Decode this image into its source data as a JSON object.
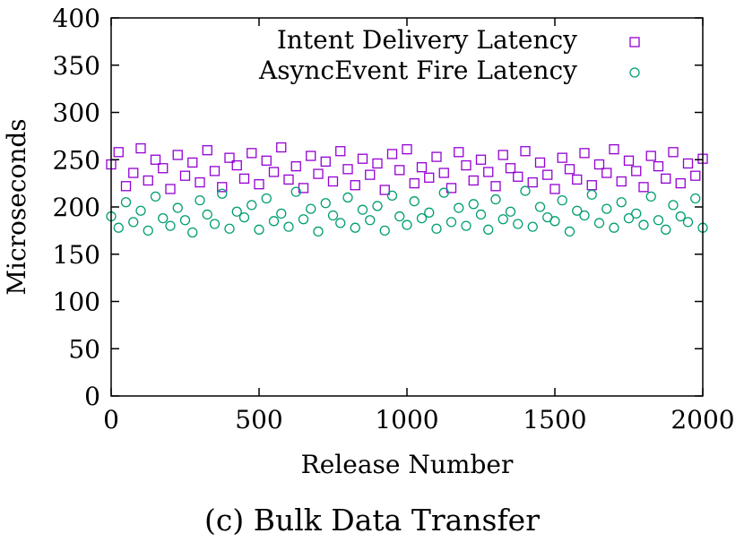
{
  "caption": "(c) Bulk Data Transfer",
  "chart_data": {
    "type": "scatter",
    "xlabel": "Release Number",
    "ylabel": "Microseconds",
    "xlim": [
      0,
      2000
    ],
    "ylim": [
      0,
      400
    ],
    "xticks": [
      0,
      500,
      1000,
      1500,
      2000
    ],
    "xtick_labels": [
      "0",
      "500",
      "1000",
      "1500",
      "2000"
    ],
    "yticks": [
      0,
      50,
      100,
      150,
      200,
      250,
      300,
      350,
      400
    ],
    "ytick_labels": [
      "0",
      "50",
      "100",
      "150",
      "200",
      "250",
      "300",
      "350",
      "400"
    ],
    "grid": false,
    "legend_position": "top-right",
    "series": [
      {
        "name": "Intent Delivery Latency",
        "marker": "square",
        "color": "#9400d3",
        "x": [
          0,
          25,
          50,
          75,
          100,
          125,
          150,
          175,
          200,
          225,
          250,
          275,
          300,
          325,
          350,
          375,
          400,
          425,
          450,
          475,
          500,
          525,
          550,
          575,
          600,
          625,
          650,
          675,
          700,
          725,
          750,
          775,
          800,
          825,
          850,
          875,
          900,
          925,
          950,
          975,
          1000,
          1025,
          1050,
          1075,
          1100,
          1125,
          1150,
          1175,
          1200,
          1225,
          1250,
          1275,
          1300,
          1325,
          1350,
          1375,
          1400,
          1425,
          1450,
          1475,
          1500,
          1525,
          1550,
          1575,
          1600,
          1625,
          1650,
          1675,
          1700,
          1725,
          1750,
          1775,
          1800,
          1825,
          1850,
          1875,
          1900,
          1925,
          1950,
          1975,
          2000
        ],
        "y": [
          245,
          258,
          222,
          236,
          262,
          228,
          250,
          241,
          219,
          255,
          233,
          247,
          226,
          260,
          238,
          221,
          252,
          244,
          230,
          257,
          224,
          249,
          237,
          263,
          229,
          243,
          220,
          254,
          235,
          248,
          227,
          259,
          240,
          223,
          251,
          234,
          246,
          218,
          256,
          239,
          261,
          225,
          242,
          231,
          253,
          236,
          220,
          258,
          244,
          228,
          250,
          237,
          222,
          255,
          241,
          232,
          259,
          226,
          247,
          234,
          219,
          252,
          240,
          229,
          257,
          223,
          245,
          236,
          261,
          227,
          249,
          238,
          221,
          254,
          243,
          230,
          258,
          225,
          246,
          233,
          251
        ]
      },
      {
        "name": "AsyncEvent Fire Latency",
        "marker": "circle",
        "color": "#009e73",
        "x": [
          0,
          25,
          50,
          75,
          100,
          125,
          150,
          175,
          200,
          225,
          250,
          275,
          300,
          325,
          350,
          375,
          400,
          425,
          450,
          475,
          500,
          525,
          550,
          575,
          600,
          625,
          650,
          675,
          700,
          725,
          750,
          775,
          800,
          825,
          850,
          875,
          900,
          925,
          950,
          975,
          1000,
          1025,
          1050,
          1075,
          1100,
          1125,
          1150,
          1175,
          1200,
          1225,
          1250,
          1275,
          1300,
          1325,
          1350,
          1375,
          1400,
          1425,
          1450,
          1475,
          1500,
          1525,
          1550,
          1575,
          1600,
          1625,
          1650,
          1675,
          1700,
          1725,
          1750,
          1775,
          1800,
          1825,
          1850,
          1875,
          1900,
          1925,
          1950,
          1975,
          2000
        ],
        "y": [
          190,
          178,
          205,
          184,
          196,
          175,
          211,
          188,
          180,
          199,
          186,
          173,
          207,
          192,
          182,
          214,
          177,
          195,
          189,
          202,
          176,
          209,
          185,
          193,
          179,
          216,
          187,
          198,
          174,
          204,
          191,
          183,
          210,
          178,
          197,
          186,
          201,
          175,
          212,
          190,
          181,
          206,
          188,
          194,
          177,
          215,
          184,
          199,
          180,
          203,
          192,
          176,
          208,
          187,
          195,
          182,
          217,
          179,
          200,
          189,
          185,
          207,
          174,
          196,
          191,
          213,
          183,
          198,
          178,
          205,
          188,
          193,
          181,
          211,
          186,
          176,
          202,
          190,
          184,
          209,
          178
        ]
      }
    ]
  }
}
